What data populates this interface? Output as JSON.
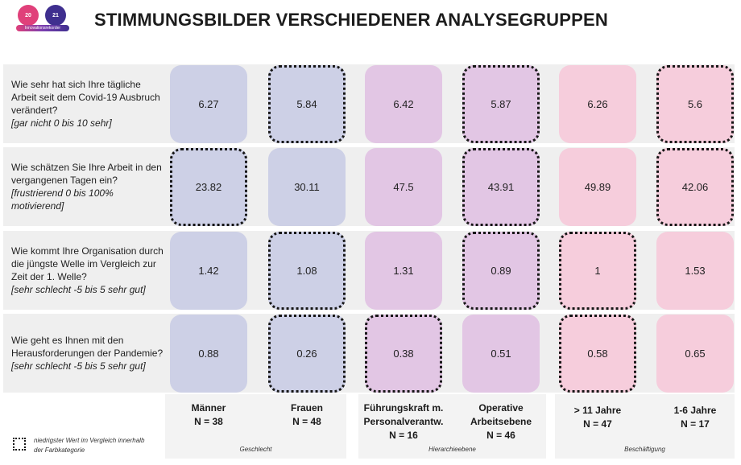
{
  "logo": {
    "left_text": "20",
    "right_text": "21",
    "caption": "Innovationsrekorder"
  },
  "title": "STIMMUNGSBILDER VERSCHIEDENER ANALYSEGRUPPEN",
  "groups": [
    "Geschlecht",
    "Hierarchieebene",
    "Beschäftigung"
  ],
  "columns": [
    {
      "label": "Männer",
      "n": "N = 38",
      "group": 0
    },
    {
      "label": "Frauen",
      "n": "N = 48",
      "group": 0
    },
    {
      "label": "Führungskraft m.",
      "label2": "Personalverantw.",
      "n": "N = 16",
      "group": 1
    },
    {
      "label": "Operative",
      "label2": "Arbeitsebene",
      "n": "N = 46",
      "group": 1
    },
    {
      "label": "> 11 Jahre",
      "n": "N = 47",
      "group": 2
    },
    {
      "label": "1-6 Jahre",
      "n": "N = 17",
      "group": 2
    }
  ],
  "questions": [
    {
      "text": "Wie sehr hat sich Ihre tägliche Arbeit seit dem Covid-19 Ausbruch verändert?",
      "scale": "[gar nicht 0 bis 10 sehr]"
    },
    {
      "text": "Wie schätzen Sie Ihre Arbeit in den vergangenen Tagen ein?",
      "scale": "[frustrierend 0 bis 100% motivierend]"
    },
    {
      "text": "Wie kommt Ihre Organisation durch die jüngste Welle im Vergleich zur Zeit der 1. Welle?",
      "scale": "[sehr schlecht -5 bis 5 sehr gut]"
    },
    {
      "text": "Wie geht es Ihnen mit den Herausforderungen der Pandemie?",
      "scale": "[sehr schlecht -5 bis 5 sehr gut]"
    }
  ],
  "chart_data": {
    "type": "table",
    "title": "STIMMUNGSBILDER VERSCHIEDENER ANALYSEGRUPPEN",
    "categories": [
      "Männer",
      "Frauen",
      "Führungskraft m. Personalverantw.",
      "Operative Arbeitsebene",
      "> 11 Jahre",
      "1-6 Jahre"
    ],
    "series": [
      {
        "values": [
          6.27,
          5.84,
          6.42,
          5.87,
          6.26,
          5.6
        ],
        "display": [
          "6.27",
          "5.84",
          "6.42",
          "5.87",
          "6.26",
          "5.6"
        ],
        "lowest": [
          1,
          3,
          5
        ]
      },
      {
        "values": [
          23.82,
          30.11,
          47.5,
          43.91,
          49.89,
          42.06
        ],
        "display": [
          "23.82",
          "30.11",
          "47.5",
          "43.91",
          "49.89",
          "42.06"
        ],
        "lowest": [
          0,
          3,
          5
        ]
      },
      {
        "values": [
          1.42,
          1.08,
          1.31,
          0.89,
          1,
          1.53
        ],
        "display": [
          "1.42",
          "1.08",
          "1.31",
          "0.89",
          "1",
          "1.53"
        ],
        "lowest": [
          1,
          3,
          4
        ]
      },
      {
        "values": [
          0.88,
          0.26,
          0.38,
          0.51,
          0.58,
          0.65
        ],
        "display": [
          "0.88",
          "0.26",
          "0.38",
          "0.51",
          "0.58",
          "0.65"
        ],
        "lowest": [
          1,
          2,
          4
        ]
      }
    ],
    "group_colors": [
      "#cdd0e6",
      "#e2c6e4",
      "#f6cddc"
    ]
  },
  "legend": {
    "text": "niedrigster Wert im Vergleich innerhalb der Farbkategorie"
  }
}
